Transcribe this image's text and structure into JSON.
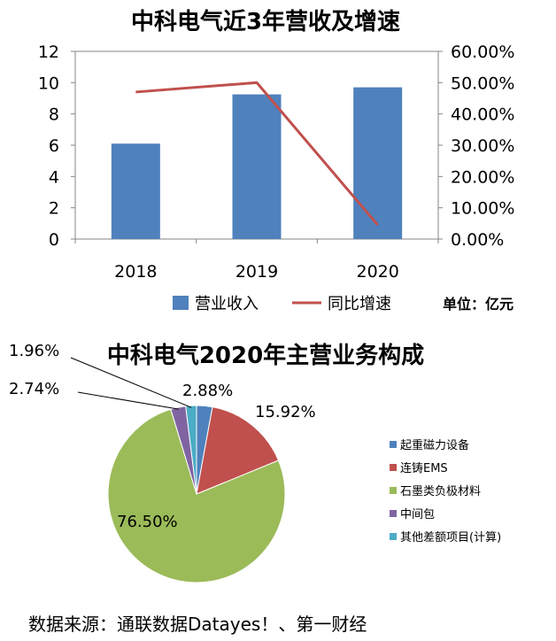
{
  "chart_data": [
    {
      "type": "bar",
      "title": "中科电气近3年营收及增速",
      "categories": [
        "2018",
        "2019",
        "2020"
      ],
      "series": [
        {
          "name": "营业收入",
          "type": "bar",
          "axis": "left",
          "values": [
            6.1,
            9.25,
            9.7
          ],
          "color": "#4f81bd"
        },
        {
          "name": "同比增速",
          "type": "line",
          "axis": "right",
          "values": [
            0.47,
            0.5,
            0.045
          ],
          "color": "#c0504d"
        }
      ],
      "ylim": [
        0,
        12
      ],
      "yticks": [
        "0",
        "2",
        "4",
        "6",
        "8",
        "10",
        "12"
      ],
      "y2lim": [
        0,
        0.6
      ],
      "y2ticks": [
        "0.00%",
        "10.00%",
        "20.00%",
        "30.00%",
        "40.00%",
        "50.00%",
        "60.00%"
      ],
      "unit_label": "单位：亿元",
      "legend_position": "bottom",
      "grid": false
    },
    {
      "type": "pie",
      "title": "中科电气2020年主营业务构成",
      "slices": [
        {
          "label": "起重磁力设备",
          "value": 2.88,
          "display": "2.88%",
          "color": "#4f81bd"
        },
        {
          "label": "连铸EMS",
          "value": 15.92,
          "display": "15.92%",
          "color": "#c0504d"
        },
        {
          "label": "石墨类负极材料",
          "value": 76.5,
          "display": "76.50%",
          "color": "#9bbb59"
        },
        {
          "label": "中间包",
          "value": 2.74,
          "display": "2.74%",
          "color": "#8064a2"
        },
        {
          "label": "其他差额项目(计算)",
          "value": 1.96,
          "display": "1.96%",
          "color": "#4bacc6"
        }
      ],
      "legend_position": "right"
    }
  ],
  "source": "数据来源：通联数据Datayes！、第一财经"
}
